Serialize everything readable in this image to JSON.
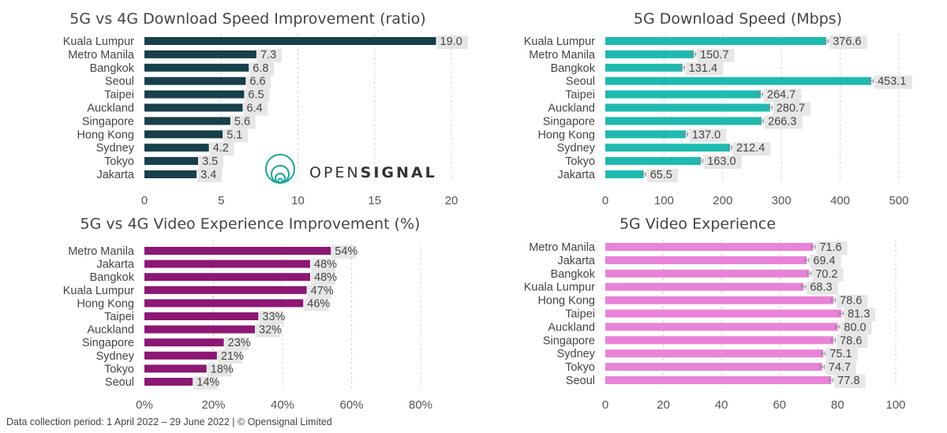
{
  "footer": "Data collection period: 1 April 2022 – 29 June 2022 |  © Opensignal Limited",
  "logo": {
    "text_light": "OPEN",
    "text_bold": "SIGNAL",
    "icon": "opensignal-rings-icon"
  },
  "colors": {
    "panel1": "#17404a",
    "panel2": "#1ebab0",
    "panel3": "#8c1774",
    "panel4": "#e883d8",
    "label_bg": "#e6e6e6",
    "grid": "#d4d4d4",
    "error_bar": "#888888"
  },
  "chart_data": [
    {
      "type": "bar",
      "orientation": "horizontal",
      "title": "5G vs 4G Download Speed Improvement (ratio)",
      "categories": [
        "Kuala Lumpur",
        "Metro Manila",
        "Bangkok",
        "Seoul",
        "Taipei",
        "Auckland",
        "Singapore",
        "Hong Kong",
        "Sydney",
        "Tokyo",
        "Jakarta"
      ],
      "values": [
        19.0,
        7.3,
        6.8,
        6.6,
        6.5,
        6.4,
        5.6,
        5.1,
        4.2,
        3.5,
        3.4
      ],
      "value_labels": [
        "19.0",
        "7.3",
        "6.8",
        "6.6",
        "6.5",
        "6.4",
        "5.6",
        "5.1",
        "4.2",
        "3.5",
        "3.4"
      ],
      "xlim": [
        0,
        20
      ],
      "ticks": [
        0,
        5,
        10,
        15,
        20
      ],
      "tick_labels": [
        "0",
        "5",
        "10",
        "15",
        "20"
      ],
      "grid": true,
      "error_bars": false
    },
    {
      "type": "bar",
      "orientation": "horizontal",
      "title": "5G Download Speed (Mbps)",
      "categories": [
        "Kuala Lumpur",
        "Metro Manila",
        "Bangkok",
        "Seoul",
        "Taipei",
        "Auckland",
        "Singapore",
        "Hong Kong",
        "Sydney",
        "Tokyo",
        "Jakarta"
      ],
      "values": [
        376.6,
        150.7,
        131.4,
        453.1,
        264.7,
        280.7,
        266.3,
        137.0,
        212.4,
        163.0,
        65.5
      ],
      "value_labels": [
        "376.6",
        "150.7",
        "131.4",
        "453.1",
        "264.7",
        "280.7",
        "266.3",
        "137.0",
        "212.4",
        "163.0",
        "65.5"
      ],
      "xlim": [
        0,
        500
      ],
      "ticks": [
        0,
        100,
        200,
        300,
        400,
        500
      ],
      "tick_labels": [
        "0",
        "100",
        "200",
        "300",
        "400",
        "500"
      ],
      "grid": true,
      "error_bars": true
    },
    {
      "type": "bar",
      "orientation": "horizontal",
      "title": "5G vs 4G Video Experience Improvement (%)",
      "categories": [
        "Metro Manila",
        "Jakarta",
        "Bangkok",
        "Kuala Lumpur",
        "Hong Kong",
        "Taipei",
        "Auckland",
        "Singapore",
        "Sydney",
        "Tokyo",
        "Seoul"
      ],
      "values": [
        54,
        48,
        48,
        47,
        46,
        33,
        32,
        23,
        21,
        18,
        14
      ],
      "value_labels": [
        "54%",
        "48%",
        "48%",
        "47%",
        "46%",
        "33%",
        "32%",
        "23%",
        "21%",
        "18%",
        "14%"
      ],
      "xlim": [
        0,
        80
      ],
      "ticks": [
        0,
        20,
        40,
        60,
        80
      ],
      "tick_labels": [
        "0%",
        "20%",
        "40%",
        "60%",
        "80%"
      ],
      "grid": true,
      "error_bars": false
    },
    {
      "type": "bar",
      "orientation": "horizontal",
      "title": "5G Video Experience",
      "categories": [
        "Metro Manila",
        "Jakarta",
        "Bangkok",
        "Kuala Lumpur",
        "Hong Kong",
        "Taipei",
        "Auckland",
        "Singapore",
        "Sydney",
        "Tokyo",
        "Seoul"
      ],
      "values": [
        71.6,
        69.4,
        70.2,
        68.3,
        78.6,
        81.3,
        80.0,
        78.6,
        75.1,
        74.7,
        77.8
      ],
      "value_labels": [
        "71.6",
        "69.4",
        "70.2",
        "68.3",
        "78.6",
        "81.3",
        "80.0",
        "78.6",
        "75.1",
        "74.7",
        "77.8"
      ],
      "xlim": [
        0,
        100
      ],
      "ticks": [
        0,
        20,
        40,
        60,
        80,
        100
      ],
      "tick_labels": [
        "0",
        "20",
        "40",
        "60",
        "80",
        "100"
      ],
      "grid": true,
      "error_bars": true
    }
  ]
}
